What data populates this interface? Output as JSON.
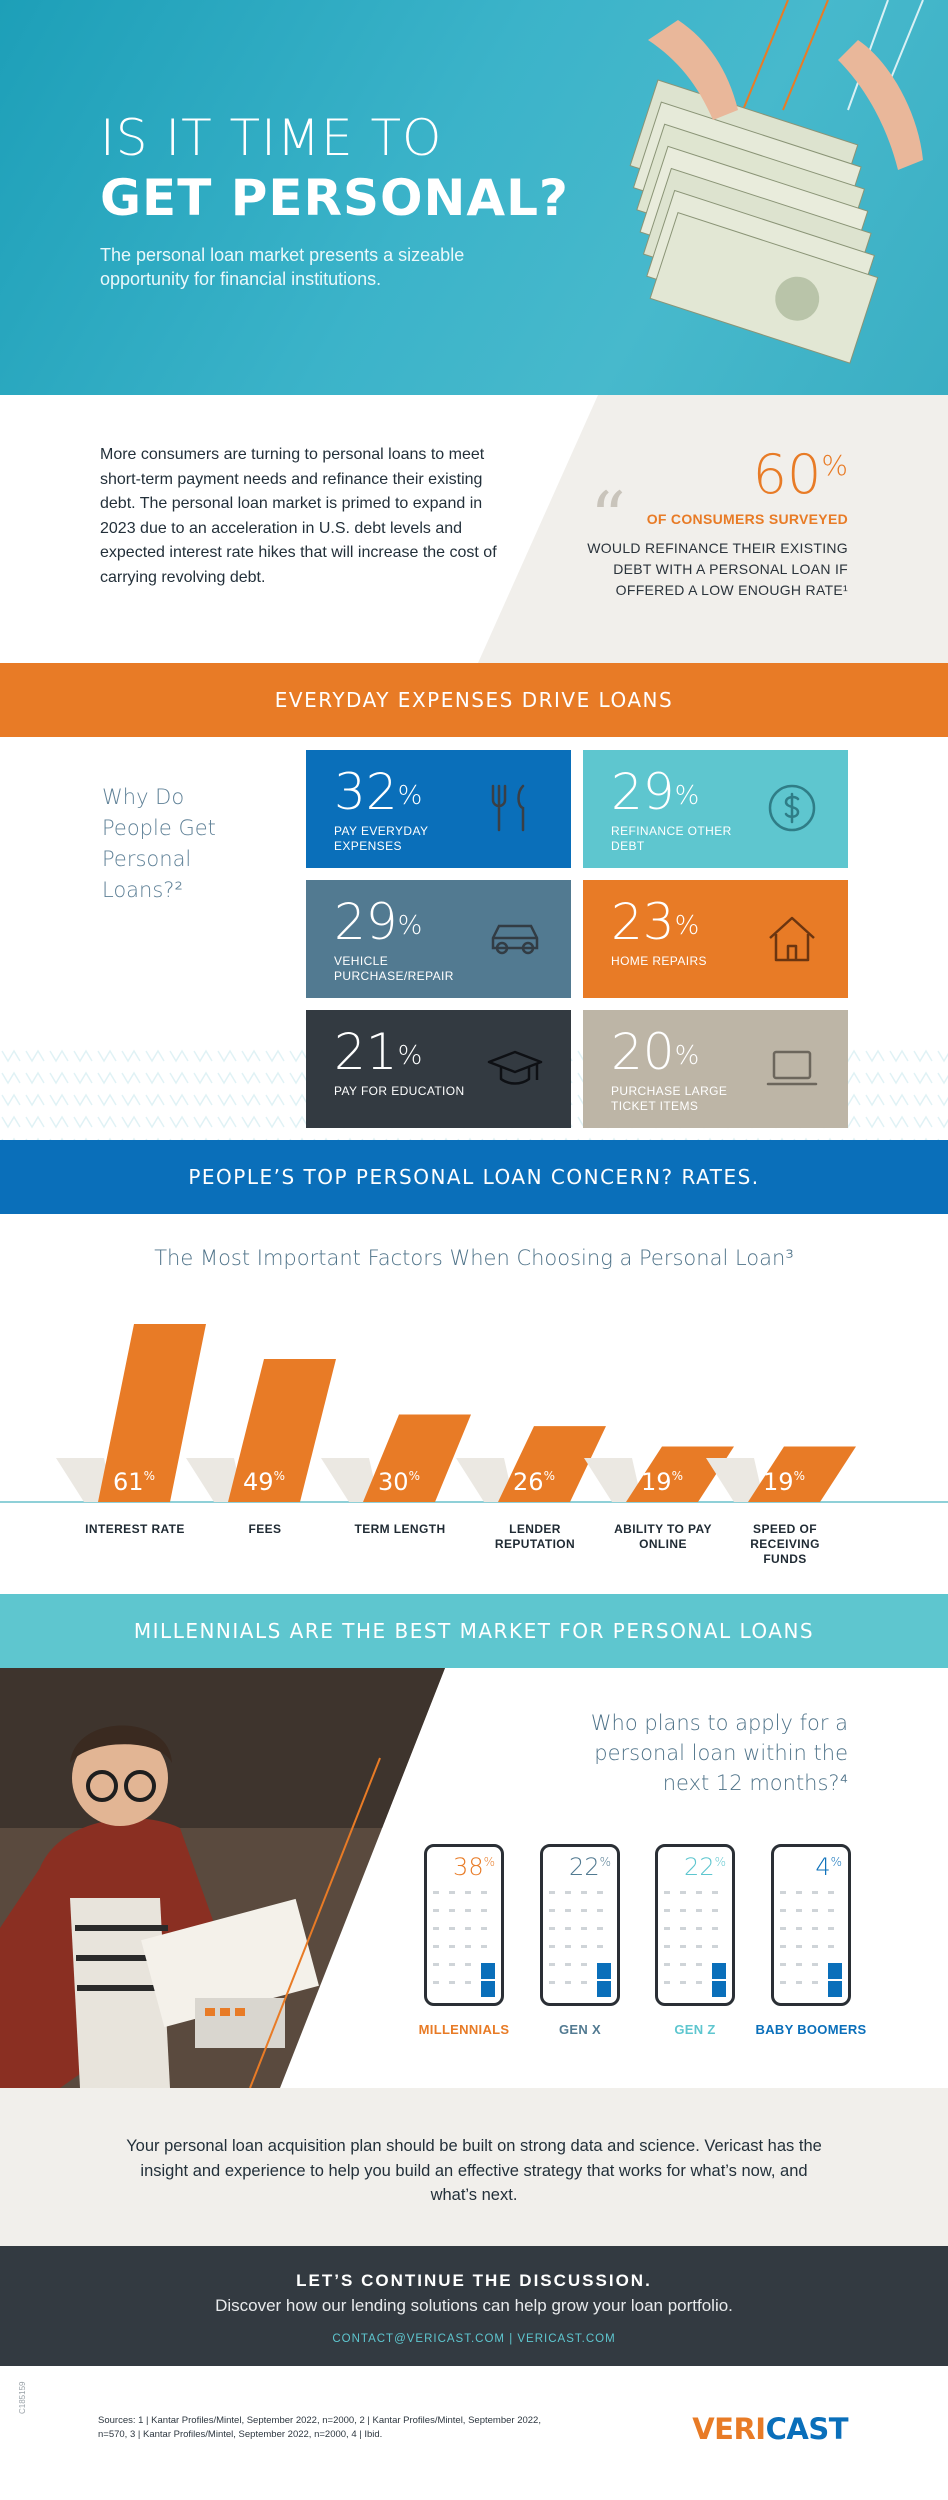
{
  "hero": {
    "title_line1": "IS IT TIME TO",
    "title_line2": "GET PERSONAL?",
    "subtitle": "The personal loan market presents a sizeable opportunity for financial institutions."
  },
  "intro": {
    "body": "More consumers are turning to personal loans to meet short-term payment needs and refinance their existing debt. The personal loan market is primed to expand in 2023 due to an acceleration in U.S. debt levels and expected interest rate hikes that will increase the cost of carrying revolving debt.",
    "stat_value": "60",
    "stat_unit": "%",
    "stat_label": "OF CONSUMERS SURVEYED",
    "stat_desc": "WOULD REFINANCE THEIR EXISTING DEBT WITH A PERSONAL LOAN IF OFFERED A LOW ENOUGH RATE¹"
  },
  "banners": {
    "everyday": "EVERYDAY EXPENSES DRIVE LOANS",
    "rates": "PEOPLE’S TOP PERSONAL LOAN CONCERN? RATES.",
    "millennials": "MILLENNIALS ARE THE BEST MARKET FOR PERSONAL LOANS"
  },
  "reasons": {
    "heading": "Why Do People Get Personal Loans?²",
    "tiles": [
      {
        "value": "32",
        "unit": "%",
        "label": "PAY EVERYDAY EXPENSES",
        "icon": "utensils-icon",
        "color": "#0a6fba"
      },
      {
        "value": "29",
        "unit": "%",
        "label": "REFINANCE OTHER DEBT",
        "icon": "dollar-coin-icon",
        "color": "#5ec6cf"
      },
      {
        "value": "29",
        "unit": "%",
        "label": "VEHICLE PURCHASE/REPAIR",
        "icon": "car-icon",
        "color": "#527a91"
      },
      {
        "value": "23",
        "unit": "%",
        "label": "HOME REPAIRS",
        "icon": "house-icon",
        "color": "#e87b26"
      },
      {
        "value": "21",
        "unit": "%",
        "label": "PAY FOR EDUCATION",
        "icon": "graduation-cap-icon",
        "color": "#333a41"
      },
      {
        "value": "20",
        "unit": "%",
        "label": "PURCHASE LARGE TICKET ITEMS",
        "icon": "laptop-icon",
        "color": "#bdb5a6"
      }
    ]
  },
  "chart_data": {
    "type": "bar",
    "title": "The Most Important Factors When Choosing a Personal Loan³",
    "categories": [
      "INTEREST RATE",
      "FEES",
      "TERM LENGTH",
      "LENDER REPUTATION",
      "ABILITY TO PAY ONLINE",
      "SPEED OF RECEIVING FUNDS"
    ],
    "values": [
      61,
      49,
      30,
      26,
      19,
      19
    ],
    "unit": "%",
    "color": "#e87b26"
  },
  "millennials": {
    "question": "Who plans to apply for a personal loan within the next 12 months?⁴",
    "groups": [
      {
        "label": "MILLENNIALS",
        "value": "38",
        "unit": "%",
        "color": "#e87b26"
      },
      {
        "label": "GEN X",
        "value": "22",
        "unit": "%",
        "color": "#527a91"
      },
      {
        "label": "GEN Z",
        "value": "22",
        "unit": "%",
        "color": "#5ec6cf"
      },
      {
        "label": "BABY BOOMERS",
        "value": "4",
        "unit": "%",
        "color": "#0a6fba"
      }
    ]
  },
  "closing": {
    "text": "Your personal loan acquisition plan should be built on strong data and science. Vericast has the insight and experience to help you build an effective strategy that works for what’s now, and what’s next."
  },
  "cta": {
    "title": "LET’S CONTINUE THE DISCUSSION.",
    "subtitle": "Discover how our lending solutions can help grow your loan portfolio.",
    "contact": "CONTACT@VERICAST.COM | VERICAST.COM"
  },
  "footer": {
    "code": "C185159",
    "sources": "Sources: 1 | Kantar Profiles/Mintel, September 2022, n=2000, 2 | Kantar Profiles/Mintel, September 2022, n=570, 3 | Kantar Profiles/Mintel, September 2022, n=2000, 4 | Ibid.",
    "logo_part1": "VERI",
    "logo_part2": "CAST"
  }
}
